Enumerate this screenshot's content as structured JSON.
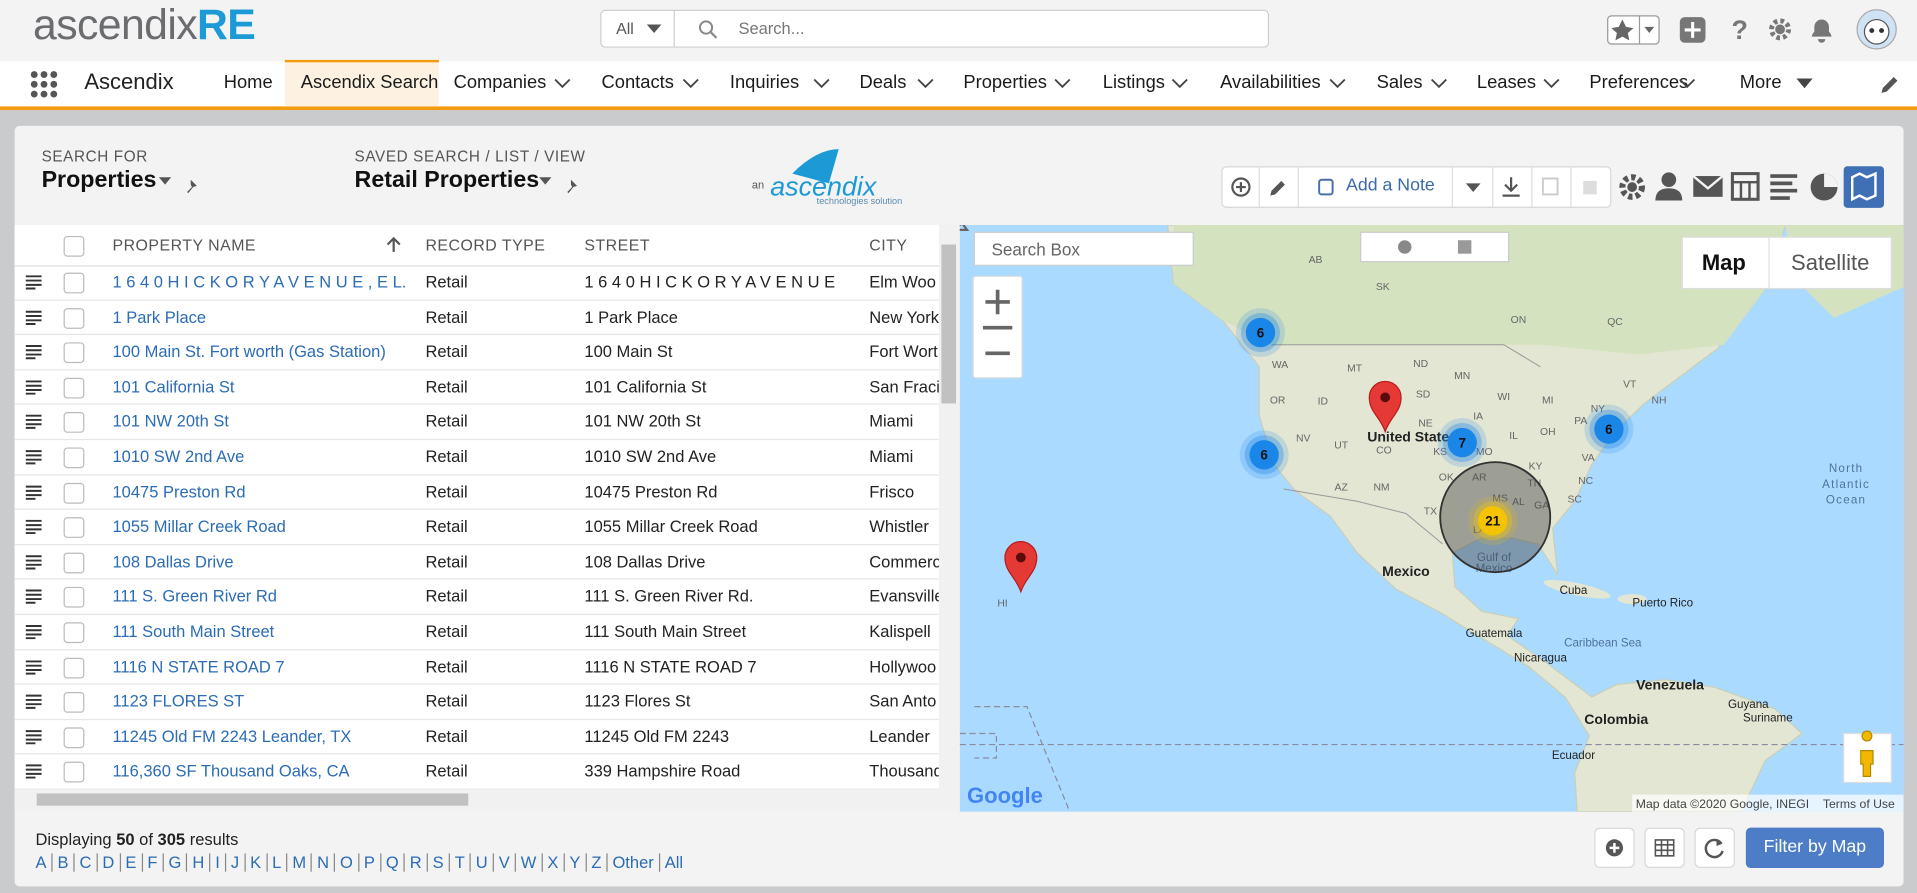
{
  "header": {
    "logo_main": "ascendix",
    "logo_accent": "RE",
    "scope": "All",
    "search_placeholder": "Search..."
  },
  "nav": {
    "app_name": "Ascendix",
    "items": [
      "Home",
      "Ascendix Search",
      "Companies",
      "Contacts",
      "Inquiries",
      "Deals",
      "Properties",
      "Listings",
      "Availabilities",
      "Sales",
      "Leases",
      "Preferences",
      "More"
    ]
  },
  "search_panel": {
    "search_for_label": "SEARCH FOR",
    "search_for_value": "Properties",
    "saved_label": "SAVED SEARCH / LIST / VIEW",
    "saved_value": "Retail Properties",
    "add_note": "Add a Note"
  },
  "brand_logo": {
    "prefix": "an",
    "name": "ascendix",
    "tagline": "technologies solution"
  },
  "table": {
    "columns": [
      "PROPERTY NAME",
      "RECORD TYPE",
      "STREET",
      "CITY"
    ],
    "rows": [
      [
        "1 6 4 0 H I C K O R Y A V E N U E , E L...",
        "Retail",
        "1 6 4 0 H I C K O R Y A V E N U E",
        "Elm Woo"
      ],
      [
        "1 Park Place",
        "Retail",
        "1 Park Place",
        "New York"
      ],
      [
        "100 Main St. Fort worth (Gas Station)",
        "Retail",
        "100 Main St",
        "Fort Wort"
      ],
      [
        "101 California St",
        "Retail",
        "101 California St",
        "San Fraci"
      ],
      [
        "101 NW 20th St",
        "Retail",
        "101 NW 20th St",
        "Miami"
      ],
      [
        "1010 SW 2nd Ave",
        "Retail",
        "1010 SW 2nd Ave",
        "Miami"
      ],
      [
        "10475 Preston Rd",
        "Retail",
        "10475 Preston Rd",
        "Frisco"
      ],
      [
        "1055 Millar Creek Road",
        "Retail",
        "1055 Millar Creek Road",
        "Whistler"
      ],
      [
        "108 Dallas Drive",
        "Retail",
        "108 Dallas Drive",
        "Commerc"
      ],
      [
        "111 S. Green River Rd",
        "Retail",
        "111 S. Green River Rd.",
        "Evansville"
      ],
      [
        "111 South Main Street",
        "Retail",
        "111 South Main Street",
        "Kalispell"
      ],
      [
        "1116 N STATE ROAD 7",
        "Retail",
        "1116 N STATE ROAD 7",
        "Hollywoo"
      ],
      [
        "1123 FLORES ST",
        "Retail",
        "1123 Flores St",
        "San Anto"
      ],
      [
        "11245 Old FM 2243 Leander, TX",
        "Retail",
        "11245 Old FM 2243",
        "Leander"
      ],
      [
        "116,360 SF Thousand Oaks, CA",
        "Retail",
        "339 Hampshire Road",
        "Thousand"
      ]
    ]
  },
  "map": {
    "search_box": "Search Box",
    "map_types": [
      "Map",
      "Satellite"
    ],
    "clusters": [
      6,
      6,
      7,
      6,
      21
    ],
    "labels": [
      "AB",
      "SK",
      "ON",
      "QC",
      "WA",
      "MT",
      "ND",
      "MN",
      "OR",
      "ID",
      "SD",
      "WI",
      "MI",
      "NY",
      "VT",
      "NH",
      "NV",
      "UT",
      "NE",
      "IA",
      "IL",
      "OH",
      "PA",
      "CO",
      "KS",
      "MO",
      "KY",
      "VA",
      "AZ",
      "NM",
      "OK",
      "AR",
      "TN",
      "NC",
      "MS",
      "AL",
      "GA",
      "SC",
      "TX",
      "LA",
      "HI",
      "United States",
      "Mexico",
      "Gulf of",
      "Mexico",
      "North",
      "Atlantic",
      "Ocean",
      "Cuba",
      "Puerto Rico",
      "Guatemala",
      "Caribbean Sea",
      "Nicaragua",
      "Venezuela",
      "Guyana",
      "Suriname",
      "Colombia",
      "Ecuador"
    ],
    "google": "Google",
    "attribution": "Map data ©2020 Google, INEGI",
    "terms": "Terms of Use"
  },
  "footer": {
    "displaying": "Displaying",
    "shown": 50,
    "of": "of",
    "total": 305,
    "results": "results",
    "letters": [
      "A",
      "B",
      "C",
      "D",
      "E",
      "F",
      "G",
      "H",
      "I",
      "J",
      "K",
      "L",
      "M",
      "N",
      "O",
      "P",
      "Q",
      "R",
      "S",
      "T",
      "U",
      "V",
      "W",
      "X",
      "Y",
      "Z",
      "Other",
      "All"
    ],
    "filter_button": "Filter by Map"
  }
}
